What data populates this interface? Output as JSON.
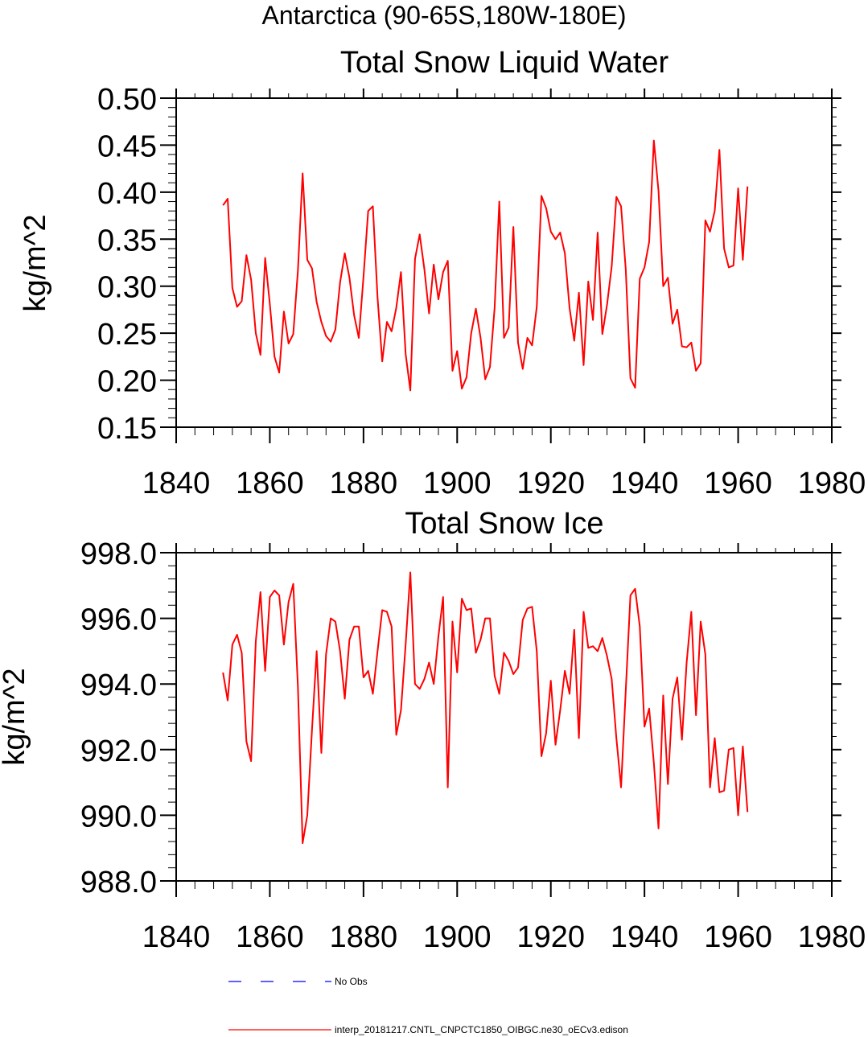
{
  "figure_title": "Antarctica (90-65S,180W-180E)",
  "legend": [
    {
      "label": "No Obs",
      "color": "#0000ff",
      "dash": "dashed"
    },
    {
      "label": "interp_20181217.CNTL_CNPCTC1850_OIBGC.ne30_oECv3.edison",
      "color": "#ff0000",
      "dash": "solid"
    }
  ],
  "chart_data": [
    {
      "type": "line",
      "title": "Total Snow Liquid Water",
      "ylabel": "kg/m^2",
      "xlabel": "",
      "xlim": [
        1840,
        1980
      ],
      "ylim": [
        0.15,
        0.5
      ],
      "xticks": [
        "1840",
        "1860",
        "1880",
        "1900",
        "1920",
        "1940",
        "1960",
        "1980"
      ],
      "yticks": [
        "0.15",
        "0.20",
        "0.25",
        "0.30",
        "0.35",
        "0.40",
        "0.45",
        "0.50"
      ],
      "series": [
        {
          "color": "#ff0000",
          "x": [
            1850,
            1851,
            1852,
            1853,
            1854,
            1855,
            1856,
            1857,
            1858,
            1859,
            1860,
            1861,
            1862,
            1863,
            1864,
            1865,
            1866,
            1867,
            1868,
            1869,
            1870,
            1871,
            1872,
            1873,
            1874,
            1875,
            1876,
            1877,
            1878,
            1879,
            1880,
            1881,
            1882,
            1883,
            1884,
            1885,
            1886,
            1887,
            1888,
            1889,
            1890,
            1891,
            1892,
            1893,
            1894,
            1895,
            1896,
            1897,
            1898,
            1899,
            1900,
            1901,
            1902,
            1903,
            1904,
            1905,
            1906,
            1907,
            1908,
            1909,
            1910,
            1911,
            1912,
            1913,
            1914,
            1915,
            1916,
            1917,
            1918,
            1919,
            1920,
            1921,
            1922,
            1923,
            1924,
            1925,
            1926,
            1927,
            1928,
            1929,
            1930,
            1931,
            1932,
            1933,
            1934,
            1935,
            1936,
            1937,
            1938,
            1939,
            1940,
            1941,
            1942,
            1943,
            1944,
            1945,
            1946,
            1947,
            1948,
            1949,
            1950,
            1951,
            1952,
            1953,
            1954,
            1955,
            1956,
            1957,
            1958,
            1959,
            1960,
            1961,
            1962
          ],
          "y": [
            0.386,
            0.393,
            0.298,
            0.278,
            0.284,
            0.333,
            0.307,
            0.25,
            0.227,
            0.33,
            0.281,
            0.225,
            0.208,
            0.273,
            0.239,
            0.249,
            0.317,
            0.42,
            0.328,
            0.319,
            0.283,
            0.262,
            0.247,
            0.241,
            0.254,
            0.304,
            0.335,
            0.309,
            0.269,
            0.245,
            0.31,
            0.38,
            0.385,
            0.288,
            0.22,
            0.262,
            0.252,
            0.277,
            0.315,
            0.228,
            0.189,
            0.329,
            0.355,
            0.318,
            0.271,
            0.323,
            0.286,
            0.315,
            0.327,
            0.21,
            0.231,
            0.191,
            0.203,
            0.25,
            0.276,
            0.245,
            0.201,
            0.214,
            0.277,
            0.39,
            0.245,
            0.256,
            0.363,
            0.24,
            0.212,
            0.245,
            0.237,
            0.278,
            0.396,
            0.383,
            0.358,
            0.35,
            0.357,
            0.335,
            0.277,
            0.242,
            0.293,
            0.216,
            0.305,
            0.264,
            0.357,
            0.249,
            0.28,
            0.321,
            0.395,
            0.385,
            0.318,
            0.202,
            0.192,
            0.308,
            0.32,
            0.347,
            0.455,
            0.401,
            0.3,
            0.309,
            0.26,
            0.275,
            0.236,
            0.235,
            0.24,
            0.21,
            0.218,
            0.37,
            0.358,
            0.38,
            0.445,
            0.34,
            0.32,
            0.322,
            0.404,
            0.328,
            0.406
          ]
        }
      ]
    },
    {
      "type": "line",
      "title": "Total Snow Ice",
      "ylabel": "kg/m^2",
      "xlabel": "",
      "xlim": [
        1840,
        1980
      ],
      "ylim": [
        988.0,
        998.0
      ],
      "xticks": [
        "1840",
        "1860",
        "1880",
        "1900",
        "1920",
        "1940",
        "1960",
        "1980"
      ],
      "yticks": [
        "988.0",
        "990.0",
        "992.0",
        "994.0",
        "996.0",
        "998.0"
      ],
      "series": [
        {
          "color": "#ff0000",
          "x": [
            1850,
            1851,
            1852,
            1853,
            1854,
            1855,
            1856,
            1857,
            1858,
            1859,
            1860,
            1861,
            1862,
            1863,
            1864,
            1865,
            1866,
            1867,
            1868,
            1869,
            1870,
            1871,
            1872,
            1873,
            1874,
            1875,
            1876,
            1877,
            1878,
            1879,
            1880,
            1881,
            1882,
            1883,
            1884,
            1885,
            1886,
            1887,
            1888,
            1889,
            1890,
            1891,
            1892,
            1893,
            1894,
            1895,
            1896,
            1897,
            1898,
            1899,
            1900,
            1901,
            1902,
            1903,
            1904,
            1905,
            1906,
            1907,
            1908,
            1909,
            1910,
            1911,
            1912,
            1913,
            1914,
            1915,
            1916,
            1917,
            1918,
            1919,
            1920,
            1921,
            1922,
            1923,
            1924,
            1925,
            1926,
            1927,
            1928,
            1929,
            1930,
            1931,
            1932,
            1933,
            1934,
            1935,
            1936,
            1937,
            1938,
            1939,
            1940,
            1941,
            1942,
            1943,
            1944,
            1945,
            1946,
            1947,
            1948,
            1949,
            1950,
            1951,
            1952,
            1953,
            1954,
            1955,
            1956,
            1957,
            1958,
            1959,
            1960,
            1961,
            1962
          ],
          "y": [
            994.35,
            993.5,
            995.2,
            995.5,
            994.95,
            992.25,
            991.65,
            995.3,
            996.8,
            994.4,
            996.65,
            996.85,
            996.7,
            995.2,
            996.5,
            997.05,
            993.9,
            989.15,
            990.0,
            992.6,
            995.0,
            991.9,
            994.9,
            996.0,
            995.9,
            995.0,
            993.55,
            995.35,
            995.75,
            995.75,
            994.2,
            994.4,
            993.7,
            995.0,
            996.25,
            996.2,
            995.75,
            992.45,
            993.2,
            995.2,
            997.4,
            994.0,
            993.85,
            994.15,
            994.65,
            994.0,
            995.45,
            996.65,
            990.85,
            995.9,
            994.35,
            996.6,
            996.25,
            996.3,
            994.95,
            995.35,
            996.0,
            996.0,
            994.25,
            993.7,
            994.95,
            994.7,
            994.3,
            994.5,
            995.95,
            996.3,
            996.35,
            995.0,
            991.8,
            992.5,
            994.1,
            992.15,
            993.2,
            994.4,
            993.7,
            995.65,
            992.35,
            996.2,
            995.1,
            995.15,
            995.0,
            995.4,
            994.85,
            994.15,
            992.35,
            990.85,
            993.8,
            996.7,
            996.9,
            995.75,
            992.7,
            993.25,
            991.6,
            989.6,
            993.65,
            990.95,
            993.55,
            994.2,
            992.3,
            994.65,
            996.2,
            993.05,
            995.9,
            994.9,
            990.85,
            992.35,
            990.7,
            990.75,
            992.0,
            992.05,
            990.0,
            992.1,
            990.1
          ]
        }
      ]
    }
  ]
}
